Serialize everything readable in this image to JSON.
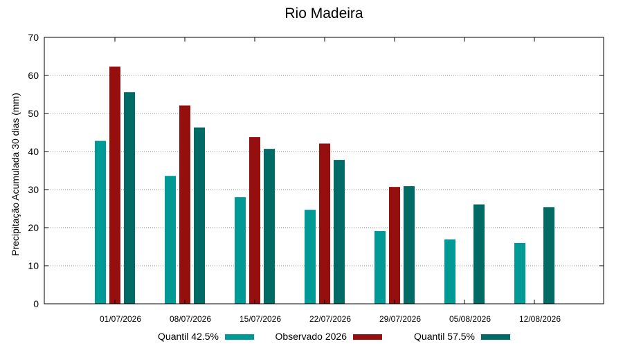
{
  "chart_data": {
    "type": "bar",
    "title": "Rio Madeira",
    "xlabel": "",
    "ylabel": "Precipitação Acumulada 30 dias (mm)",
    "ylim": [
      0,
      70
    ],
    "yticks": [
      0,
      10,
      20,
      30,
      40,
      50,
      60,
      70
    ],
    "grid": true,
    "legend_position": "bottom",
    "categories": [
      "01/07/2026",
      "08/07/2026",
      "15/07/2026",
      "22/07/2026",
      "29/07/2026",
      "05/08/2026",
      "12/08/2026"
    ],
    "series": [
      {
        "name": "Quantil 42.5%",
        "color": "#009a96",
        "values": [
          42.8,
          33.6,
          28.0,
          24.7,
          19.1,
          16.9,
          16.0
        ]
      },
      {
        "name": "Observado 2026",
        "color": "#950f0f",
        "values": [
          62.3,
          52.1,
          43.8,
          42.1,
          30.7,
          null,
          null
        ]
      },
      {
        "name": "Quantil 57.5%",
        "color": "#006b64",
        "values": [
          55.6,
          46.3,
          40.7,
          37.8,
          30.9,
          26.1,
          25.4
        ]
      }
    ]
  }
}
